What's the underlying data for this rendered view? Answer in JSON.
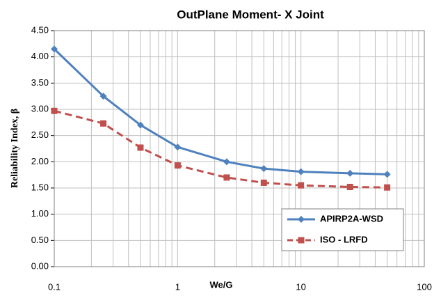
{
  "chart_data": {
    "type": "line",
    "title": "OutPlane Moment- X Joint",
    "x_label": "We/G",
    "y_label": "Reliability Index, β",
    "x": [
      0.1,
      0.25,
      0.5,
      1,
      2.5,
      5,
      10,
      25,
      50
    ],
    "series": [
      {
        "name": "APIRP2A-WSD",
        "color": "#4f81bd",
        "marker": "diamond",
        "dash": false,
        "values": [
          4.15,
          3.25,
          2.7,
          2.28,
          2.0,
          1.87,
          1.81,
          1.78,
          1.76
        ]
      },
      {
        "name": "ISO - LRFD",
        "color": "#c0504d",
        "marker": "square",
        "dash": true,
        "values": [
          2.97,
          2.73,
          2.27,
          1.93,
          1.7,
          1.6,
          1.55,
          1.52,
          1.51
        ]
      }
    ],
    "xscale": "log",
    "xlim": [
      0.1,
      100
    ],
    "xticks": [
      0.1,
      1,
      10,
      100
    ],
    "ylim": [
      0,
      4.5
    ],
    "yticks": [
      {
        "value": 0,
        "label": "0.00"
      },
      {
        "value": 0.5,
        "label": "0.50"
      },
      {
        "value": 1,
        "label": "1.00"
      },
      {
        "value": 1.5,
        "label": "1.50"
      },
      {
        "value": 2,
        "label": "2.00"
      },
      {
        "value": 2.5,
        "label": "2.50"
      },
      {
        "value": 3,
        "label": "3.00"
      },
      {
        "value": 3.5,
        "label": "3.50"
      },
      {
        "value": 4,
        "label": "4.00"
      },
      {
        "value": 4.5,
        "label": "4.50"
      }
    ],
    "grid": true,
    "legend": "lower right"
  }
}
